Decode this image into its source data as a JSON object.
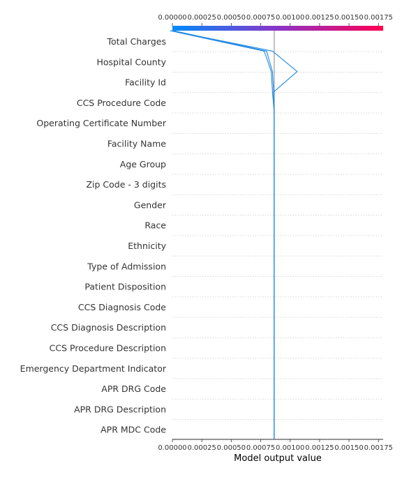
{
  "chart_data": {
    "type": "line",
    "title": "",
    "xlabel": "Model output value",
    "ylabel": "",
    "xlim": [
      0,
      0.00179
    ],
    "xticks": [
      "0.00000",
      "0.00025",
      "0.00050",
      "0.00075",
      "0.00100",
      "0.00125",
      "0.00150",
      "0.00175"
    ],
    "x_tick_values": [
      0,
      0.00025,
      0.0005,
      0.00075,
      0.001,
      0.00125,
      0.0015,
      0.00175
    ],
    "base_value": 0.000865,
    "colorbar": {
      "min": 0,
      "max": 0.00179,
      "low_color": "#008bfb",
      "mid_color": "#8a34c8",
      "high_color": "#ff0051"
    },
    "line_color": "#1e88e5",
    "features": [
      "Total Charges",
      "Hospital County",
      "Facility Id",
      "CCS Procedure Code",
      "Operating Certificate Number",
      "Facility Name",
      "Age Group",
      "Zip Code - 3 digits",
      "Gender",
      "Race",
      "Ethnicity",
      "Type of Admission",
      "Patient Disposition",
      "CCS Diagnosis Code",
      "CCS Diagnosis Description",
      "CCS Procedure Description",
      "Emergency Department Indicator",
      "APR DRG Code",
      "APR DRG Description",
      "APR MDC Code"
    ],
    "series": [
      {
        "values_top_to_bottom": [
          1e-05,
          0.0008,
          0.00085,
          0.00086,
          0.000865,
          0.000865,
          0.000865,
          0.000865,
          0.000865,
          0.000865,
          0.000865,
          0.000865,
          0.000865,
          0.000865,
          0.000865,
          0.000865,
          0.000865,
          0.000865,
          0.000865,
          0.000865,
          0.000865
        ]
      },
      {
        "values_top_to_bottom": [
          -2e-05,
          0.00078,
          0.00084,
          0.00085,
          0.000865,
          0.000865,
          0.000865,
          0.000865,
          0.000865,
          0.000865,
          0.000865,
          0.000865,
          0.000865,
          0.000865,
          0.000865,
          0.000865,
          0.000865,
          0.000865,
          0.000865,
          0.000865,
          0.000865
        ]
      },
      {
        "values_top_to_bottom": [
          -1e-05,
          0.00085,
          0.00106,
          0.00086,
          0.000865,
          0.000865,
          0.000865,
          0.000865,
          0.000865,
          0.000865,
          0.000865,
          0.000865,
          0.000865,
          0.000865,
          0.000865,
          0.000865,
          0.000865,
          0.000865,
          0.000865,
          0.000865,
          0.000865
        ]
      }
    ]
  }
}
